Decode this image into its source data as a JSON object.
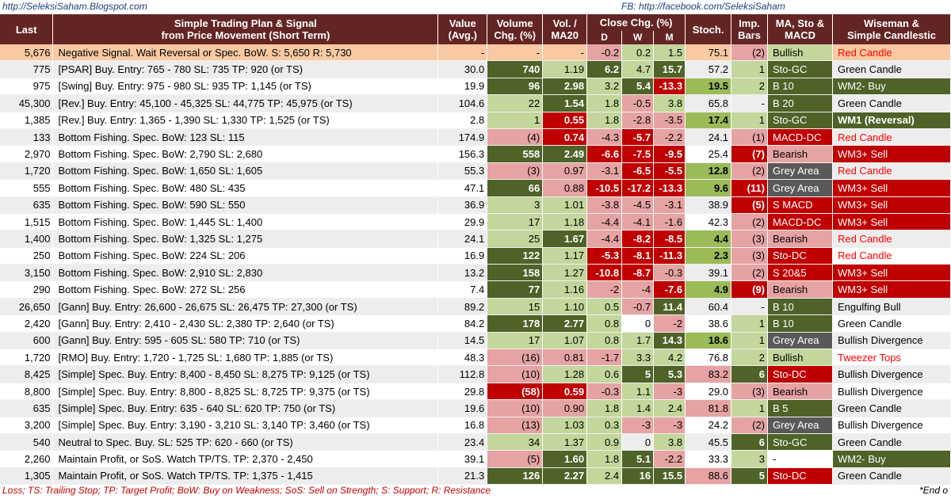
{
  "header_links": {
    "blog": "http://SeleksiSaham.Blogspot.com",
    "facebook": "FB:  http://facebook.com/SeleksiSaham"
  },
  "columns": {
    "last": "Last",
    "plan_line1": "Simple Trading Plan & Signal",
    "plan_line2": "from Price Movement (Short Term)",
    "value_line1": "Value",
    "value_line2": "(Avg.)",
    "volume_line1": "Volume",
    "volume_line2": "Chg. (%)",
    "vol_line1": "Vol. /",
    "vol_line2": "MA20",
    "close_chg": "Close Chg. (%)",
    "d": "D",
    "w": "W",
    "m": "M",
    "stoch": "Stoch.",
    "imp_line1": "Imp.",
    "imp_line2": "Bars",
    "ma_line1": "MA, Sto &",
    "ma_line2": "MACD",
    "wise_line1": "Wiseman &",
    "wise_line2": "Simple Candlestic"
  },
  "colors": {
    "header_bg": "#632523",
    "highlight_row": "#f9c9a2",
    "dark_green": "#4f6228",
    "light_green": "#c3d69b",
    "mid_green": "#9bbb59",
    "red": "#c00000",
    "light_red": "#e6a3a3",
    "grey_tag": "#595959",
    "red_text": "#ff0000"
  },
  "rows": [
    {
      "last": "5,676",
      "plan": "Negative Signal.  Wait Reversal or Spec. BoW.  S:   5,650  R:  5,730",
      "value": "-",
      "volchg": "-",
      "volma": "-",
      "d": "-0.2",
      "w": "0.2",
      "m": "1.5",
      "stoch": "75.1",
      "imp": "(2)",
      "ma": "Bullish",
      "wise": "Red Candle"
    },
    {
      "last": "775",
      "plan": "[PSAR] Buy.  Entry:   765 -   780  SL:  735  TP:   920  (or TS)",
      "value": "30.0",
      "volchg": "740",
      "volma": "1.19",
      "d": "6.2",
      "w": "4.7",
      "m": "15.7",
      "stoch": "57.2",
      "imp": "1",
      "ma": "Sto-GC",
      "wise": "Green Candle"
    },
    {
      "last": "975",
      "plan": "[Swing] Buy.  Entry:   975 -   980  SL:  935  TP:  1,145  (or TS)",
      "value": "19.9",
      "volchg": "96",
      "volma": "2.98",
      "d": "3.2",
      "w": "5.4",
      "m": "-13.3",
      "stoch": "19.5",
      "imp": "2",
      "ma": "B 10",
      "wise": "WM2- Buy"
    },
    {
      "last": "45,300",
      "plan": "[Rev.] Buy.  Entry: 45,100 - 45,325  SL: 44,775  TP: 45,975  (or TS)",
      "value": "104.6",
      "volchg": "22",
      "volma": "1.54",
      "d": "1.8",
      "w": "-0.5",
      "m": "3.8",
      "stoch": "65.8",
      "imp": "-",
      "ma": "B 20",
      "wise": "Green Candle"
    },
    {
      "last": "1,385",
      "plan": "[Rev.] Buy.  Entry:  1,365 -  1,390  SL:  1,330  TP:  1,525  (or TS)",
      "value": "2.8",
      "volchg": "1",
      "volma": "0.55",
      "d": "1.8",
      "w": "-2.8",
      "m": "-3.5",
      "stoch": "17.4",
      "imp": "1",
      "ma": "Sto-GC",
      "wise": "WM1 (Reversal)"
    },
    {
      "last": "133",
      "plan": "Bottom Fishing.  Spec. BoW:   123  SL:   115",
      "value": "174.9",
      "volchg": "(4)",
      "volma": "0.74",
      "d": "-4.3",
      "w": "-5.7",
      "m": "-2.2",
      "stoch": "24.1",
      "imp": "(1)",
      "ma": "MACD-DC",
      "wise": "Red Candle"
    },
    {
      "last": "2,970",
      "plan": "Bottom Fishing.  Spec. BoW:  2,790  SL:  2,680",
      "value": "156.3",
      "volchg": "558",
      "volma": "2.49",
      "d": "-6.6",
      "w": "-7.5",
      "m": "-9.5",
      "stoch": "25.4",
      "imp": "(7)",
      "ma": "Bearish",
      "wise": "WM3+ Sell"
    },
    {
      "last": "1,720",
      "plan": "Bottom Fishing.  Spec. BoW:  1,650  SL:  1,605",
      "value": "55.3",
      "volchg": "(3)",
      "volma": "0.97",
      "d": "-3.1",
      "w": "-6.5",
      "m": "-5.5",
      "stoch": "12.8",
      "imp": "(2)",
      "ma": "Grey Area",
      "wise": "Red Candle"
    },
    {
      "last": "555",
      "plan": "Bottom Fishing.  Spec. BoW:   480  SL:   435",
      "value": "47.1",
      "volchg": "66",
      "volma": "0.88",
      "d": "-10.5",
      "w": "-17.2",
      "m": "-13.3",
      "stoch": "9.6",
      "imp": "(11)",
      "ma": "Grey Area",
      "wise": "WM3+ Sell"
    },
    {
      "last": "635",
      "plan": "Bottom Fishing.  Spec. BoW:   590  SL:   550",
      "value": "36.9",
      "volchg": "3",
      "volma": "1.01",
      "d": "-3.8",
      "w": "-4.5",
      "m": "-3.1",
      "stoch": "38.9",
      "imp": "(5)",
      "ma": "S MACD",
      "wise": "WM3+ Sell"
    },
    {
      "last": "1,515",
      "plan": "Bottom Fishing.  Spec. BoW:  1,445  SL:  1,400",
      "value": "29.9",
      "volchg": "17",
      "volma": "1.18",
      "d": "-4.4",
      "w": "-4.1",
      "m": "-1.6",
      "stoch": "42.3",
      "imp": "(2)",
      "ma": "MACD-DC",
      "wise": "WM3+ Sell"
    },
    {
      "last": "1,400",
      "plan": "Bottom Fishing.  Spec. BoW:  1,325  SL:  1,275",
      "value": "24.1",
      "volchg": "25",
      "volma": "1.67",
      "d": "-4.4",
      "w": "-8.2",
      "m": "-8.5",
      "stoch": "4.4",
      "imp": "(3)",
      "ma": "Bearish",
      "wise": "Red Candle"
    },
    {
      "last": "250",
      "plan": "Bottom Fishing.  Spec. BoW:   224  SL:   206",
      "value": "16.9",
      "volchg": "122",
      "volma": "1.17",
      "d": "-5.3",
      "w": "-8.1",
      "m": "-11.3",
      "stoch": "2.3",
      "imp": "(3)",
      "ma": "Sto-DC",
      "wise": "Red Candle"
    },
    {
      "last": "3,150",
      "plan": "Bottom Fishing.  Spec. BoW:  2,910  SL:  2,830",
      "value": "13.2",
      "volchg": "158",
      "volma": "1.27",
      "d": "-10.8",
      "w": "-8.7",
      "m": "-0.3",
      "stoch": "39.1",
      "imp": "(2)",
      "ma": "S 20&5",
      "wise": "WM3+ Sell"
    },
    {
      "last": "290",
      "plan": "Bottom Fishing.  Spec. BoW:   272  SL:   256",
      "value": "7.4",
      "volchg": "77",
      "volma": "1.16",
      "d": "-2",
      "w": "-4",
      "m": "-7.6",
      "stoch": "4.9",
      "imp": "(9)",
      "ma": "Bearish",
      "wise": "WM3+ Sell"
    },
    {
      "last": "26,650",
      "plan": "[Gann] Buy.  Entry: 26,600 - 26,675  SL: 26,475  TP: 27,300  (or TS)",
      "value": "89.2",
      "volchg": "15",
      "volma": "1.10",
      "d": "0.5",
      "w": "-0.7",
      "m": "11.4",
      "stoch": "60.4",
      "imp": "-",
      "ma": "B 10",
      "wise": "Engulfing Bull"
    },
    {
      "last": "2,420",
      "plan": "[Gann] Buy.  Entry:  2,410 -  2,430  SL:  2,380  TP:  2,640  (or TS)",
      "value": "84.2",
      "volchg": "178",
      "volma": "2.77",
      "d": "0.8",
      "w": "0",
      "m": "-2",
      "stoch": "38.6",
      "imp": "1",
      "ma": "B 10",
      "wise": "Green Candle"
    },
    {
      "last": "600",
      "plan": "[Gann] Buy.  Entry:   595 -   605  SL:  580  TP:   710  (or TS)",
      "value": "14.5",
      "volchg": "17",
      "volma": "1.07",
      "d": "0.8",
      "w": "1.7",
      "m": "14.3",
      "stoch": "18.6",
      "imp": "1",
      "ma": "Grey Area",
      "wise": "Bullish Divergence"
    },
    {
      "last": "1,720",
      "plan": "[RMO] Buy.  Entry:  1,720 -  1,725  SL:  1,680  TP:  1,885  (or TS)",
      "value": "48.3",
      "volchg": "(16)",
      "volma": "0.81",
      "d": "-1.7",
      "w": "3.3",
      "m": "4.2",
      "stoch": "76.8",
      "imp": "2",
      "ma": "Bullish",
      "wise": "Tweezer Tops"
    },
    {
      "last": "8,425",
      "plan": "[Simple] Spec. Buy. Entry:  8,400 -  8,450  SL:  8,275  TP:  9,125  (or TS)",
      "value": "112.8",
      "volchg": "(10)",
      "volma": "1.28",
      "d": "0.6",
      "w": "5",
      "m": "5.3",
      "stoch": "83.2",
      "imp": "6",
      "ma": "Sto-DC",
      "wise": "Bullish Divergence"
    },
    {
      "last": "8,800",
      "plan": "[Simple] Spec. Buy. Entry:  8,800 -  8,825  SL:  8,725  TP:  9,375  (or TS)",
      "value": "29.8",
      "volchg": "(58)",
      "volma": "0.59",
      "d": "-0.3",
      "w": "1.1",
      "m": "-3",
      "stoch": "29.0",
      "imp": "(3)",
      "ma": "Bearish",
      "wise": "Bullish Divergence"
    },
    {
      "last": "635",
      "plan": "[Simple] Spec. Buy. Entry:   635 -   640  SL:  620  TP:   750  (or TS)",
      "value": "19.6",
      "volchg": "(10)",
      "volma": "0.90",
      "d": "1.8",
      "w": "1.4",
      "m": "2.4",
      "stoch": "81.8",
      "imp": "1",
      "ma": "B 5",
      "wise": "Green Candle"
    },
    {
      "last": "3,200",
      "plan": "[Simple] Spec. Buy. Entry:  3,190 -  3,210  SL:  3,140  TP:  3,460  (or TS)",
      "value": "16.8",
      "volchg": "(13)",
      "volma": "1.03",
      "d": "0.3",
      "w": "-3",
      "m": "-3",
      "stoch": "24.2",
      "imp": "(2)",
      "ma": "Grey Area",
      "wise": "Bullish Divergence"
    },
    {
      "last": "540",
      "plan": "Neutral to Spec. Buy.  SL:   525  TP:   620 -   660  (or TS)",
      "value": "23.4",
      "volchg": "34",
      "volma": "1.37",
      "d": "0.9",
      "w": "0",
      "m": "3.8",
      "stoch": "45.5",
      "imp": "6",
      "ma": "Sto-GC",
      "wise": "Green Candle"
    },
    {
      "last": "2,260",
      "plan": "Maintain Profit, or SoS. Watch TP/TS.  TP:  2,370 -  2,450",
      "value": "39.1",
      "volchg": "(5)",
      "volma": "1.60",
      "d": "1.8",
      "w": "5.1",
      "m": "-2.2",
      "stoch": "33.3",
      "imp": "3",
      "ma": "-",
      "wise": "WM2- Buy"
    },
    {
      "last": "1,305",
      "plan": "Maintain Profit, or SoS. Watch TP/TS.  TP:  1,375 -  1,415",
      "value": "21.3",
      "volchg": "126",
      "volma": "2.27",
      "d": "2.4",
      "w": "16",
      "m": "15.5",
      "stoch": "88.6",
      "imp": "5",
      "ma": "Sto-DC",
      "wise": "Green Candle"
    }
  ],
  "footer": {
    "legend": "Loss; TS: Trailing Stop; TP: Target Profit; BoW: Buy on Weakness; SoS: Sell on Strength; S: Support; R: Resistance",
    "end_note": "*End o"
  }
}
